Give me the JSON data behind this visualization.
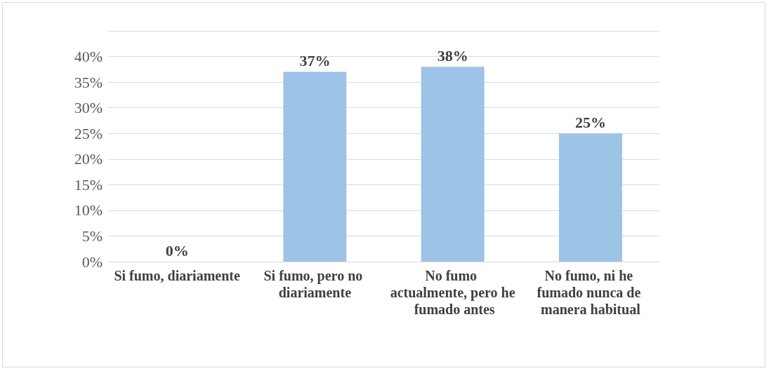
{
  "chart_data": {
    "type": "bar",
    "categories": [
      "Si fumo, diariamente",
      "Si fumo, pero no diariamente",
      "No fumo actualmente, pero he fumado antes",
      "No fumo, ni he fumado nunca de manera habitual"
    ],
    "values": [
      0,
      37,
      38,
      25
    ],
    "colors": [
      "#253746",
      "#9dc3e6",
      "#9dc3e6",
      "#9dc3e6"
    ],
    "value_labels": [
      "0%",
      "37%",
      "38%",
      "25%"
    ],
    "ylim": [
      0,
      45
    ],
    "yticks": [
      {
        "value": 0,
        "label": "0%"
      },
      {
        "value": 5,
        "label": "5%"
      },
      {
        "value": 10,
        "label": "10%"
      },
      {
        "value": 15,
        "label": "15%"
      },
      {
        "value": 20,
        "label": "20%"
      },
      {
        "value": 25,
        "label": "25%"
      },
      {
        "value": 30,
        "label": "30%"
      },
      {
        "value": 35,
        "label": "35%"
      },
      {
        "value": 40,
        "label": "40%"
      },
      {
        "value": 45,
        "label": null
      }
    ],
    "grid": "y"
  }
}
